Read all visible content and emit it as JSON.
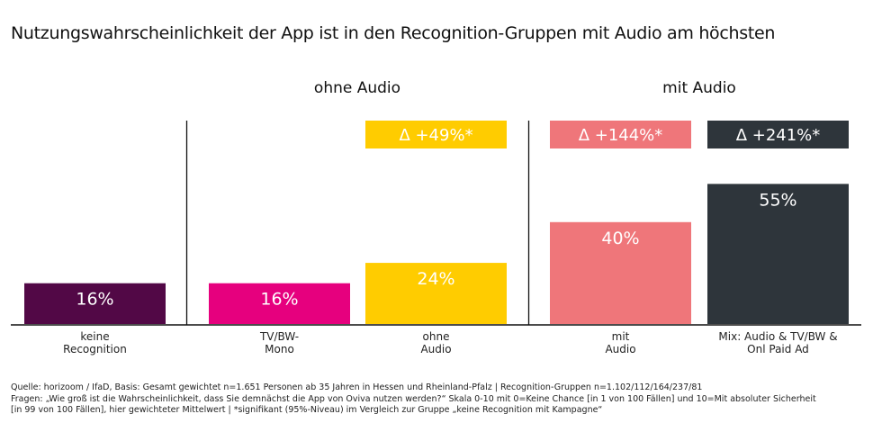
{
  "title": "Nutzungswahrscheinlichkeit der App ist in den Recognition-Gruppen mit Audio am höchsten",
  "groups": [
    {
      "label": "ohne Audio"
    },
    {
      "label": "mit Audio"
    }
  ],
  "chart_data": {
    "type": "bar",
    "title": "Nutzungswahrscheinlichkeit der App ist in den Recognition-Gruppen mit Audio am höchsten",
    "xlabel": "",
    "ylabel": "",
    "ylim": [
      0,
      60
    ],
    "grid": false,
    "categories": [
      "keine\nRecognition",
      "TV/BW-\nMono",
      "ohne\nAudio",
      "mit\nAudio",
      "Mix: Audio & TV/BW &\nOnl Paid Ad"
    ],
    "values": [
      16,
      16,
      24,
      40,
      55
    ],
    "value_labels": [
      "16%",
      "16%",
      "24%",
      "40%",
      "55%"
    ],
    "colors": [
      "#520846",
      "#e6007e",
      "#ffcc00",
      "#ef767a",
      "#2e353b"
    ],
    "deltas": [
      null,
      null,
      "Δ +49%*",
      "Δ +144%*",
      "Δ +241%*"
    ],
    "group_headers": [
      "ohne Audio",
      "mit Audio"
    ],
    "group_spans": [
      [
        1,
        2
      ],
      [
        3,
        4
      ]
    ]
  },
  "footnote": {
    "line1": "Quelle: horizoom / IfaD, Basis: Gesamt gewichtet n=1.651 Personen ab 35 Jahren in Hessen und Rheinland-Pfalz | Recognition-Gruppen n=1.102/112/164/237/81",
    "line2": "Fragen: „Wie groß ist die Wahrscheinlichkeit, dass Sie demnächst die App von Oviva nutzen werden?“ Skala 0-10 mit 0=Keine Chance [in 1 von 100 Fällen] und 10=Mit absoluter Sicherheit",
    "line3": "[in 99 von 100 Fällen], hier gewichteter Mittelwert | *signifikant (95%-Niveau) im Vergleich zur Gruppe „keine Recognition mit Kampagne“"
  }
}
